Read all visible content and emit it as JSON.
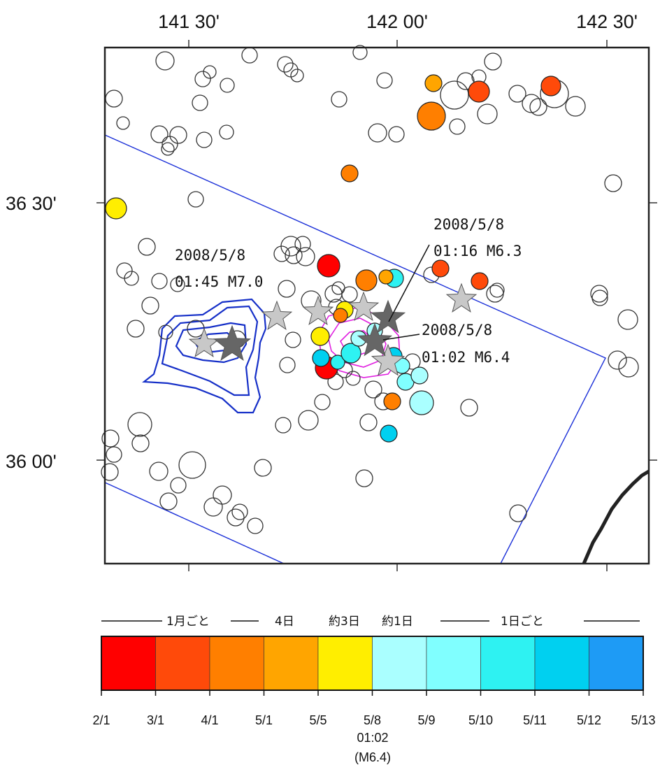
{
  "lon_labels": [
    "141 30'",
    "142 00'",
    "142 30'"
  ],
  "lat_labels": [
    "36 30'",
    "36 00'"
  ],
  "annotations": [
    {
      "date": "2008/5/8",
      "detail": "01:45 M7.0"
    },
    {
      "date": "2008/5/8",
      "detail": "01:16 M6.3"
    },
    {
      "date": "2008/5/8",
      "detail": "01:02 M6.4"
    }
  ],
  "colorbar": {
    "interval_labels": [
      "1月ごと",
      "4日",
      "約3日",
      "約1日",
      "1日ごと"
    ],
    "colors": [
      "#ff0000",
      "#ff4a0a",
      "#ff7f00",
      "#ffa500",
      "#ffee00",
      "#aaffff",
      "#80ffff",
      "#2ef2f2",
      "#00d0f0",
      "#1e9bf5"
    ],
    "tick_labels": [
      "2/1",
      "3/1",
      "4/1",
      "5/1",
      "5/5",
      "5/8",
      "5/9",
      "5/10",
      "5/11",
      "5/12",
      "5/13"
    ],
    "mainshock_time": "01:02",
    "mainshock_mag": "(M6.4)"
  }
}
